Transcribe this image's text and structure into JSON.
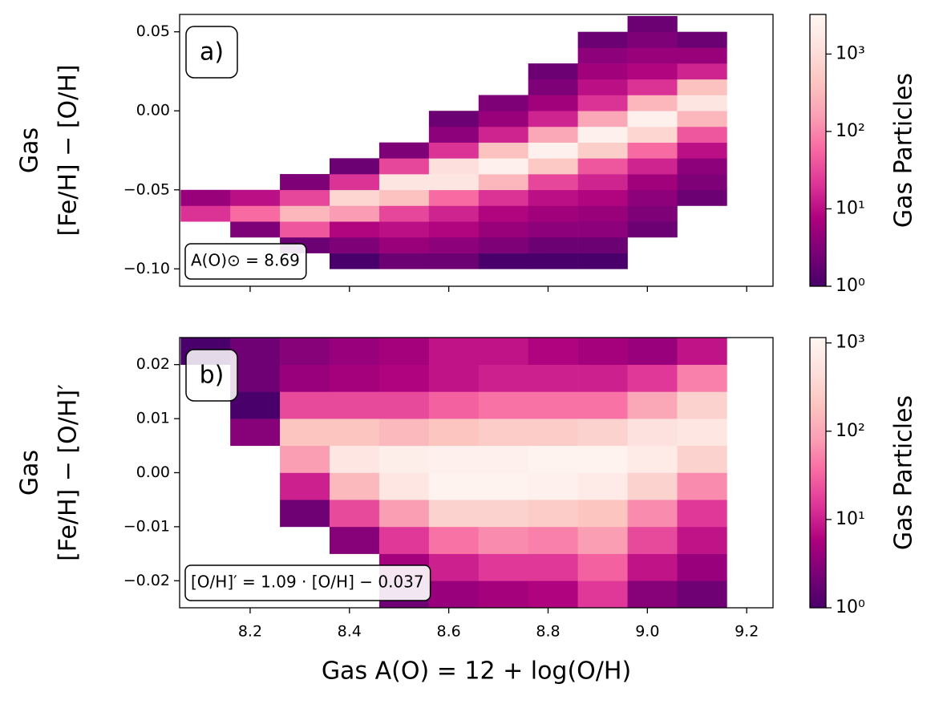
{
  "chart_data": [
    {
      "type": "hist2d",
      "panel_label": "a)",
      "annotation": "A(O)⊙ = 8.69",
      "ylabel": [
        "Gas",
        "[Fe/H] − [O/H]"
      ],
      "colorbar_label": "Gas Particles",
      "xlim": [
        8.058,
        9.253
      ],
      "ylim": [
        -0.111,
        0.061
      ],
      "xticks": [
        8.2,
        8.4,
        8.6,
        8.8,
        9.0,
        9.2
      ],
      "yticks": [
        {
          "value": 0.05,
          "label": "0.05"
        },
        {
          "value": 0,
          "label": "0.00"
        },
        {
          "value": -0.05,
          "label": "−0.05"
        },
        {
          "value": -0.1,
          "label": "−0.10"
        }
      ],
      "log_color": true,
      "clim": [
        1,
        3250
      ],
      "cticks": [
        {
          "value": 1,
          "label": "10⁰"
        },
        {
          "value": 10,
          "label": "10¹"
        },
        {
          "value": 100,
          "label": "10²"
        },
        {
          "value": 1000,
          "label": "10³"
        }
      ],
      "cmap": [
        "#49006a",
        "#7a0177",
        "#ae017e",
        "#dd3497",
        "#f768a1",
        "#fa9fb5",
        "#fcc5c0",
        "#fde0dd",
        "#fff7f3"
      ],
      "xbins": [
        8.06,
        8.16,
        8.26,
        8.36,
        8.46,
        8.56,
        8.66,
        8.76,
        8.86,
        8.96,
        9.06,
        9.16
      ],
      "ybins": [
        -0.11,
        -0.1,
        -0.09,
        -0.08,
        -0.07,
        -0.06,
        -0.05,
        -0.04,
        -0.03,
        -0.02,
        -0.01,
        0,
        0.01,
        0.02,
        0.03,
        0.04,
        0.05,
        0.06
      ],
      "counts": [
        [
          null,
          null,
          null,
          null,
          20,
          5,
          null,
          null,
          null,
          null,
          null,
          null,
          null,
          null,
          null,
          null,
          null
        ],
        [
          null,
          null,
          null,
          3,
          60,
          10,
          null,
          null,
          null,
          null,
          null,
          null,
          null,
          null,
          null,
          null,
          null
        ],
        [
          null,
          null,
          2,
          40,
          300,
          30,
          3,
          null,
          null,
          null,
          null,
          null,
          null,
          null,
          null,
          null,
          null
        ],
        [
          null,
          1,
          3,
          8,
          150,
          800,
          20,
          2,
          null,
          null,
          null,
          null,
          null,
          null,
          null,
          null,
          null
        ],
        [
          null,
          2,
          5,
          10,
          30,
          400,
          1500,
          30,
          3,
          null,
          null,
          null,
          null,
          null,
          null,
          null,
          null
        ],
        [
          null,
          2,
          4,
          8,
          15,
          60,
          1500,
          1200,
          20,
          4,
          2,
          null,
          null,
          null,
          null,
          null,
          null
        ],
        [
          null,
          1,
          3,
          5,
          8,
          20,
          300,
          2500,
          400,
          15,
          5,
          3,
          null,
          null,
          null,
          null,
          null
        ],
        [
          null,
          1,
          2,
          4,
          6,
          10,
          30,
          500,
          2500,
          200,
          15,
          6,
          3,
          2,
          null,
          null,
          null
        ],
        [
          null,
          1,
          2,
          4,
          5,
          8,
          15,
          40,
          600,
          2500,
          200,
          20,
          10,
          6,
          4,
          2,
          null
        ],
        [
          null,
          null,
          null,
          2,
          3,
          4,
          6,
          15,
          60,
          800,
          2500,
          300,
          20,
          8,
          5,
          3,
          2
        ],
        [
          null,
          null,
          null,
          null,
          null,
          2,
          3,
          4,
          10,
          40,
          300,
          1500,
          400,
          15,
          5,
          2,
          null
        ]
      ]
    },
    {
      "type": "hist2d",
      "panel_label": "b)",
      "annotation": "[O/H]′ = 1.09 · [O/H] − 0.037",
      "ylabel": [
        "Gas",
        "[Fe/H] − [O/H]′"
      ],
      "colorbar_label": "Gas Particles",
      "xlabel": "Gas A(O) = 12 + log(O/H)",
      "xlim": [
        8.058,
        9.253
      ],
      "ylim": [
        -0.025,
        0.025
      ],
      "xticks": [
        8.2,
        8.4,
        8.6,
        8.8,
        {
          "value": 9,
          "label": "9.0"
        },
        9.2
      ],
      "yticks": [
        0.02,
        0.01,
        {
          "value": 0,
          "label": "0.00"
        },
        {
          "value": -0.01,
          "label": "−0.01"
        },
        {
          "value": -0.02,
          "label": "−0.02"
        }
      ],
      "log_color": true,
      "clim": [
        1,
        1150
      ],
      "cticks": [
        {
          "value": 1,
          "label": "10⁰"
        },
        {
          "value": 10,
          "label": "10¹"
        },
        {
          "value": 100,
          "label": "10²"
        },
        {
          "value": 1000,
          "label": "10³"
        }
      ],
      "cmap": [
        "#49006a",
        "#7a0177",
        "#ae017e",
        "#dd3497",
        "#f768a1",
        "#fa9fb5",
        "#fcc5c0",
        "#fde0dd",
        "#fff7f3"
      ],
      "xbins": [
        8.06,
        8.16,
        8.26,
        8.36,
        8.46,
        8.56,
        8.66,
        8.76,
        8.86,
        8.96,
        9.06,
        9.16
      ],
      "ybins": [
        -0.025,
        -0.02,
        -0.015,
        -0.01,
        -0.005,
        0,
        0.005,
        0.01,
        0.015,
        0.02,
        0.025
      ],
      "counts": [
        [
          null,
          null,
          null,
          null,
          null,
          null,
          null,
          null,
          null,
          1
        ],
        [
          null,
          null,
          null,
          null,
          null,
          null,
          3,
          1,
          2,
          2
        ],
        [
          null,
          null,
          null,
          2,
          10,
          80,
          200,
          20,
          4,
          3
        ],
        [
          null,
          null,
          3,
          20,
          150,
          600,
          200,
          20,
          5,
          4
        ],
        [
          2,
          5,
          15,
          80,
          600,
          800,
          150,
          20,
          6,
          5
        ],
        [
          4,
          10,
          40,
          300,
          1000,
          900,
          200,
          30,
          8,
          8
        ],
        [
          5,
          15,
          60,
          300,
          1000,
          900,
          250,
          40,
          10,
          8
        ],
        [
          6,
          15,
          50,
          250,
          900,
          1000,
          250,
          40,
          10,
          6
        ],
        [
          15,
          30,
          80,
          200,
          700,
          1000,
          300,
          40,
          10,
          5
        ],
        [
          3,
          8,
          20,
          60,
          300,
          700,
          500,
          100,
          15,
          4
        ],
        [
          2,
          4,
          8,
          15,
          60,
          300,
          600,
          300,
          50,
          8
        ]
      ]
    }
  ]
}
